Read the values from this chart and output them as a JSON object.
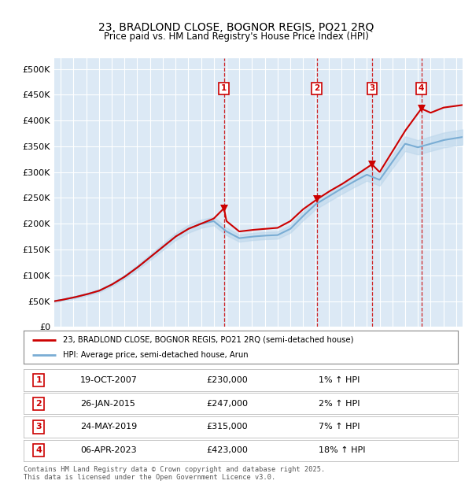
{
  "title": "23, BRADLOND CLOSE, BOGNOR REGIS, PO21 2RQ",
  "subtitle": "Price paid vs. HM Land Registry's House Price Index (HPI)",
  "background_color": "#dce9f5",
  "plot_bg_color": "#dce9f5",
  "hpi_line_color": "#7aadd4",
  "hpi_fill_color": "#b8d4ea",
  "price_line_color": "#cc0000",
  "sale_marker_color": "#cc0000",
  "ylabel_ticks": [
    "£0",
    "£50K",
    "£100K",
    "£150K",
    "£200K",
    "£250K",
    "£300K",
    "£350K",
    "£400K",
    "£450K",
    "£500K"
  ],
  "ytick_values": [
    0,
    50000,
    100000,
    150000,
    200000,
    250000,
    300000,
    350000,
    400000,
    450000,
    500000
  ],
  "ylim": [
    0,
    520000
  ],
  "xlim_start": 1994.5,
  "xlim_end": 2026.5,
  "sales": [
    {
      "label": "1",
      "date_str": "19-OCT-2007",
      "year": 2007.8,
      "price": 230000,
      "hpi_pct": "1%"
    },
    {
      "label": "2",
      "date_str": "26-JAN-2015",
      "year": 2015.07,
      "price": 247000,
      "hpi_pct": "2%"
    },
    {
      "label": "3",
      "date_str": "24-MAY-2019",
      "year": 2019.4,
      "price": 315000,
      "hpi_pct": "7%"
    },
    {
      "label": "4",
      "date_str": "06-APR-2023",
      "year": 2023.27,
      "price": 423000,
      "hpi_pct": "18%"
    }
  ],
  "legend_property_label": "23, BRADLOND CLOSE, BOGNOR REGIS, PO21 2RQ (semi-detached house)",
  "legend_hpi_label": "HPI: Average price, semi-detached house, Arun",
  "footer_text": "Contains HM Land Registry data © Crown copyright and database right 2025.\nThis data is licensed under the Open Government Licence v3.0.",
  "hpi_key_years": [
    1994.5,
    1995,
    1996,
    1997,
    1998,
    1999,
    2000,
    2001,
    2002,
    2003,
    2004,
    2005,
    2006,
    2007,
    2008,
    2009,
    2010,
    2011,
    2012,
    2013,
    2014,
    2015,
    2016,
    2017,
    2018,
    2019,
    2020,
    2021,
    2022,
    2023,
    2024,
    2025,
    2026.5
  ],
  "hpi_key_vals": [
    50000,
    52000,
    57000,
    63000,
    70000,
    82000,
    97000,
    115000,
    135000,
    155000,
    175000,
    190000,
    200000,
    205000,
    185000,
    172000,
    175000,
    177000,
    178000,
    190000,
    215000,
    238000,
    253000,
    268000,
    282000,
    295000,
    285000,
    320000,
    355000,
    348000,
    355000,
    362000,
    368000
  ],
  "prop_key_years": [
    1994.5,
    1995,
    1996,
    1997,
    1998,
    1999,
    2000,
    2001,
    2002,
    2003,
    2004,
    2005,
    2006,
    2007,
    2007.8,
    2008,
    2009,
    2010,
    2011,
    2012,
    2013,
    2014,
    2015.07,
    2016,
    2017,
    2018,
    2019.4,
    2020,
    2021,
    2022,
    2023.27,
    2024,
    2025,
    2026.5
  ],
  "prop_key_vals": [
    50000,
    52000,
    57000,
    63000,
    70000,
    82000,
    97000,
    115000,
    135000,
    155000,
    175000,
    190000,
    200000,
    210000,
    230000,
    205000,
    185000,
    188000,
    190000,
    192000,
    205000,
    228000,
    247000,
    262000,
    276000,
    292000,
    315000,
    300000,
    340000,
    380000,
    423000,
    415000,
    425000,
    430000
  ]
}
